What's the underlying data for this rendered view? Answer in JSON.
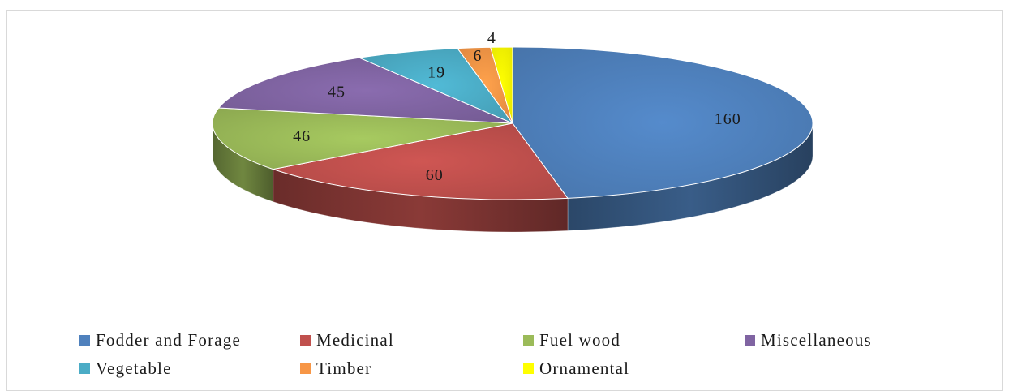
{
  "chart_data": {
    "type": "pie",
    "style": "3d",
    "title": "",
    "legend_position": "bottom",
    "categories": [
      "Fodder and Forage",
      "Medicinal",
      "Fuel wood",
      "Miscellaneous",
      "Vegetable",
      "Timber",
      "Ornamental"
    ],
    "values": [
      160,
      60,
      46,
      45,
      19,
      6,
      4
    ],
    "data_labels": [
      "160",
      "60",
      "46",
      "45",
      "19",
      "6",
      "4"
    ],
    "colors": [
      "#4f81bd",
      "#c0504d",
      "#9bbb59",
      "#8064a2",
      "#4bacc6",
      "#f79646",
      "#ffff00"
    ]
  }
}
